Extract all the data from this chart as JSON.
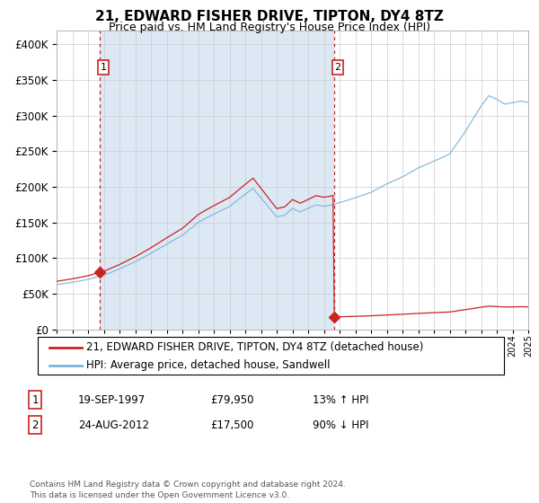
{
  "title": "21, EDWARD FISHER DRIVE, TIPTON, DY4 8TZ",
  "subtitle": "Price paid vs. HM Land Registry's House Price Index (HPI)",
  "legend_line1": "21, EDWARD FISHER DRIVE, TIPTON, DY4 8TZ (detached house)",
  "legend_line2": "HPI: Average price, detached house, Sandwell",
  "transaction1_date": "19-SEP-1997",
  "transaction1_price": "£79,950",
  "transaction1_hpi": "13% ↑ HPI",
  "transaction2_date": "24-AUG-2012",
  "transaction2_price": "£17,500",
  "transaction2_hpi": "90% ↓ HPI",
  "copyright_text": "Contains HM Land Registry data © Crown copyright and database right 2024.\nThis data is licensed under the Open Government Licence v3.0.",
  "hpi_color": "#7ab4d8",
  "price_color": "#cc2222",
  "vline_color": "#cc2222",
  "bg_color": "#dce9f5",
  "grid_color": "#cccccc",
  "ylim_max": 420000,
  "transaction1_year": 1997.72,
  "transaction1_value": 79950,
  "transaction2_year": 2012.64,
  "transaction2_value": 17500,
  "hpi_keypoints_x": [
    1995.0,
    1996.0,
    1997.0,
    1998.0,
    1999.0,
    2000.0,
    2001.0,
    2002.0,
    2003.0,
    2004.0,
    2005.0,
    2006.0,
    2007.0,
    2007.5,
    2008.0,
    2009.0,
    2009.5,
    2010.0,
    2010.5,
    2011.0,
    2011.5,
    2012.0,
    2012.5,
    2013.0,
    2014.0,
    2015.0,
    2016.0,
    2017.0,
    2018.0,
    2019.0,
    2020.0,
    2021.0,
    2021.5,
    2022.0,
    2022.5,
    2023.0,
    2023.5,
    2024.0,
    2024.5,
    2025.0
  ],
  "hpi_keypoints_y": [
    63000,
    66000,
    70000,
    76000,
    85000,
    95000,
    107000,
    120000,
    132000,
    150000,
    162000,
    173000,
    190000,
    198000,
    185000,
    158000,
    160000,
    170000,
    165000,
    170000,
    175000,
    173000,
    175000,
    178000,
    185000,
    193000,
    205000,
    215000,
    228000,
    238000,
    248000,
    280000,
    298000,
    315000,
    330000,
    325000,
    318000,
    320000,
    322000,
    320000
  ]
}
